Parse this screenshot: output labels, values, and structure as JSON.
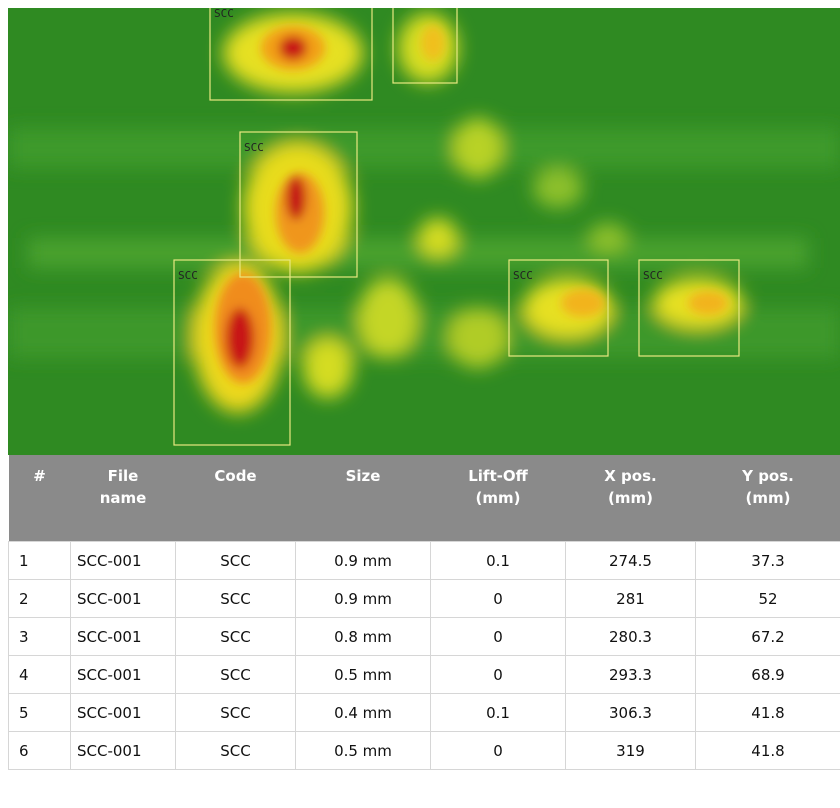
{
  "heatmap": {
    "boxes": [
      {
        "label": "SCC"
      },
      {
        "label": "SCC"
      },
      {
        "label": "SCC"
      },
      {
        "label": "SCC"
      },
      {
        "label": "SCC"
      }
    ]
  },
  "table": {
    "columns": [
      "#",
      "File\nname",
      "Code",
      "Size",
      "Lift-Off\n(mm)",
      "X pos.\n(mm)",
      "Y pos.\n(mm)"
    ],
    "rows": [
      [
        "1",
        "SCC-001",
        "SCC",
        "0.9 mm",
        "0.1",
        "274.5",
        "37.3"
      ],
      [
        "2",
        "SCC-001",
        "SCC",
        "0.9 mm",
        "0",
        "281",
        "52"
      ],
      [
        "3",
        "SCC-001",
        "SCC",
        "0.8 mm",
        "0",
        "280.3",
        "67.2"
      ],
      [
        "4",
        "SCC-001",
        "SCC",
        "0.5 mm",
        "0",
        "293.3",
        "68.9"
      ],
      [
        "5",
        "SCC-001",
        "SCC",
        "0.4 mm",
        "0.1",
        "306.3",
        "41.8"
      ],
      [
        "6",
        "SCC-001",
        "SCC",
        "0.5 mm",
        "0",
        "319",
        "41.8"
      ]
    ]
  }
}
